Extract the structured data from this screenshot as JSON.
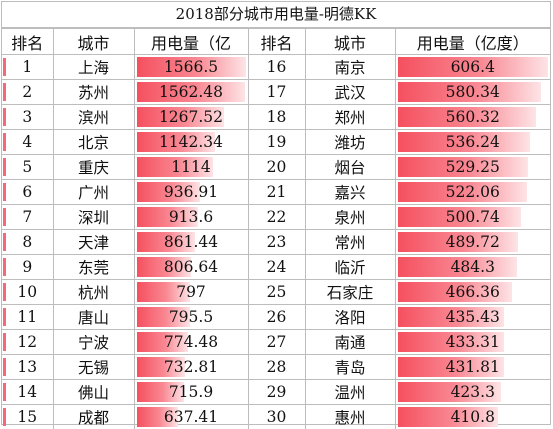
{
  "title": "2018部分城市用电量-明德KK",
  "headers": [
    "排名",
    "城市",
    "用电量（亿",
    "排名",
    "城市",
    "用电量（亿度）"
  ],
  "bar_color": "#f5505f",
  "rows": [
    {
      "rank_a": "1",
      "city_a": "上海",
      "value_a": "1566.5",
      "rank_b": "16",
      "city_b": "南京",
      "value_b": "606.4"
    },
    {
      "rank_a": "2",
      "city_a": "苏州",
      "value_a": "1562.48",
      "rank_b": "17",
      "city_b": "武汉",
      "value_b": "580.34"
    },
    {
      "rank_a": "3",
      "city_a": "滨州",
      "value_a": "1267.52",
      "rank_b": "18",
      "city_b": "郑州",
      "value_b": "560.32"
    },
    {
      "rank_a": "4",
      "city_a": "北京",
      "value_a": "1142.34",
      "rank_b": "19",
      "city_b": "潍坊",
      "value_b": "536.24"
    },
    {
      "rank_a": "5",
      "city_a": "重庆",
      "value_a": "1114",
      "rank_b": "20",
      "city_b": "烟台",
      "value_b": "529.25"
    },
    {
      "rank_a": "6",
      "city_a": "广州",
      "value_a": "936.91",
      "rank_b": "21",
      "city_b": "嘉兴",
      "value_b": "522.06"
    },
    {
      "rank_a": "7",
      "city_a": "深圳",
      "value_a": "913.6",
      "rank_b": "22",
      "city_b": "泉州",
      "value_b": "500.74"
    },
    {
      "rank_a": "8",
      "city_a": "天津",
      "value_a": "861.44",
      "rank_b": "23",
      "city_b": "常州",
      "value_b": "489.72"
    },
    {
      "rank_a": "9",
      "city_a": "东莞",
      "value_a": "806.64",
      "rank_b": "24",
      "city_b": "临沂",
      "value_b": "484.3"
    },
    {
      "rank_a": "10",
      "city_a": "杭州",
      "value_a": "797",
      "rank_b": "25",
      "city_b": "石家庄",
      "value_b": "466.36"
    },
    {
      "rank_a": "11",
      "city_a": "唐山",
      "value_a": "795.5",
      "rank_b": "26",
      "city_b": "洛阳",
      "value_b": "435.43"
    },
    {
      "rank_a": "12",
      "city_a": "宁波",
      "value_a": "774.48",
      "rank_b": "27",
      "city_b": "南通",
      "value_b": "433.31"
    },
    {
      "rank_a": "13",
      "city_a": "无锡",
      "value_a": "732.81",
      "rank_b": "28",
      "city_b": "青岛",
      "value_b": "431.81"
    },
    {
      "rank_a": "14",
      "city_a": "佛山",
      "value_a": "715.9",
      "rank_b": "29",
      "city_b": "温州",
      "value_b": "423.3"
    },
    {
      "rank_a": "15",
      "city_a": "成都",
      "value_a": "637.41",
      "rank_b": "30",
      "city_b": "惠州",
      "value_b": "410.8"
    }
  ]
}
